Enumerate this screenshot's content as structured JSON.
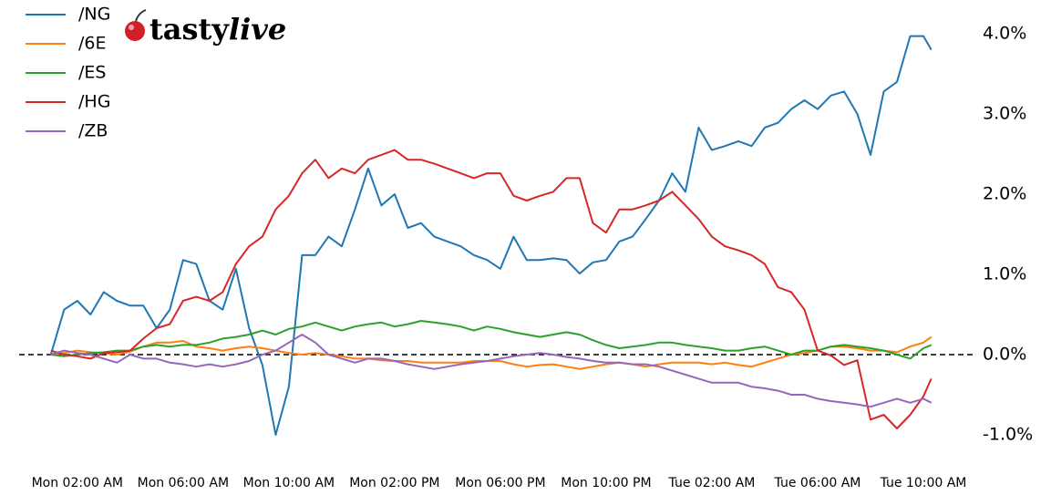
{
  "logo": [
    "tasty",
    "live"
  ],
  "chart_data": {
    "type": "line",
    "x": [
      1,
      1.5,
      2,
      2.5,
      3,
      3.5,
      4,
      4.5,
      5,
      5.5,
      6,
      6.5,
      7,
      7.5,
      8,
      8.5,
      9,
      9.5,
      10,
      10.5,
      11,
      11.5,
      12,
      12.5,
      13,
      13.5,
      14,
      14.5,
      15,
      15.5,
      16,
      16.5,
      17,
      17.5,
      18,
      18.5,
      19,
      19.5,
      20,
      20.5,
      21,
      21.5,
      22,
      22.5,
      23,
      23.5,
      24,
      24.5,
      25,
      25.5,
      26,
      26.5,
      27,
      27.5,
      28,
      28.5,
      29,
      29.5,
      30,
      30.5,
      31,
      31.5,
      32,
      32.5,
      33,
      33.5,
      34,
      34.3
    ],
    "series": [
      {
        "name": "/NG",
        "color": "#1f77b4",
        "values": [
          0,
          0.56,
          0.67,
          0.5,
          0.78,
          0.67,
          0.61,
          0.61,
          0.33,
          0.56,
          1.18,
          1.13,
          0.67,
          0.56,
          1.07,
          0.33,
          -0.13,
          -1.0,
          -0.4,
          1.24,
          1.24,
          1.47,
          1.35,
          1.81,
          2.32,
          1.86,
          2.0,
          1.58,
          1.64,
          1.47,
          1.41,
          1.35,
          1.24,
          1.18,
          1.07,
          1.47,
          1.18,
          1.18,
          1.2,
          1.18,
          1.01,
          1.15,
          1.18,
          1.41,
          1.47,
          1.69,
          1.92,
          2.26,
          2.03,
          2.83,
          2.55,
          2.6,
          2.66,
          2.6,
          2.83,
          2.89,
          3.06,
          3.17,
          3.06,
          3.23,
          3.28,
          3.0,
          2.49,
          3.28,
          3.4,
          3.97,
          3.97,
          3.8
        ]
      },
      {
        "name": "/6E",
        "color": "#ff7f0e",
        "values": [
          0,
          0.02,
          0.05,
          0.03,
          0.02,
          0.0,
          0.04,
          0.1,
          0.15,
          0.15,
          0.17,
          0.1,
          0.08,
          0.05,
          0.08,
          0.1,
          0.08,
          0.05,
          0.02,
          0.0,
          0.02,
          0.0,
          -0.02,
          -0.05,
          -0.05,
          -0.07,
          -0.08,
          -0.08,
          -0.1,
          -0.1,
          -0.1,
          -0.1,
          -0.08,
          -0.08,
          -0.08,
          -0.12,
          -0.15,
          -0.13,
          -0.12,
          -0.15,
          -0.18,
          -0.15,
          -0.12,
          -0.1,
          -0.12,
          -0.15,
          -0.12,
          -0.1,
          -0.1,
          -0.1,
          -0.12,
          -0.1,
          -0.13,
          -0.15,
          -0.1,
          -0.05,
          0,
          0.02,
          0.05,
          0.1,
          0.1,
          0.08,
          0.05,
          0.05,
          0.03,
          0.1,
          0.15,
          0.22
        ]
      },
      {
        "name": "/ES",
        "color": "#2ca02c",
        "values": [
          0,
          -0.02,
          0,
          0.02,
          0.03,
          0.05,
          0.05,
          0.1,
          0.12,
          0.1,
          0.12,
          0.12,
          0.15,
          0.2,
          0.22,
          0.25,
          0.3,
          0.25,
          0.32,
          0.35,
          0.4,
          0.35,
          0.3,
          0.35,
          0.38,
          0.4,
          0.35,
          0.38,
          0.42,
          0.4,
          0.38,
          0.35,
          0.3,
          0.35,
          0.32,
          0.28,
          0.25,
          0.22,
          0.25,
          0.28,
          0.25,
          0.18,
          0.12,
          0.08,
          0.1,
          0.12,
          0.15,
          0.15,
          0.12,
          0.1,
          0.08,
          0.05,
          0.05,
          0.08,
          0.1,
          0.05,
          0.0,
          0.05,
          0.05,
          0.1,
          0.12,
          0.1,
          0.08,
          0.05,
          0.0,
          -0.05,
          0.08,
          0.12
        ]
      },
      {
        "name": "/HG",
        "color": "#d62728",
        "values": [
          0.05,
          0.0,
          -0.02,
          -0.05,
          0.02,
          0.03,
          0.05,
          0.2,
          0.33,
          0.38,
          0.67,
          0.72,
          0.67,
          0.78,
          1.13,
          1.35,
          1.47,
          1.81,
          1.98,
          2.26,
          2.43,
          2.2,
          2.32,
          2.26,
          2.43,
          2.49,
          2.55,
          2.43,
          2.43,
          2.38,
          2.32,
          2.26,
          2.2,
          2.26,
          2.26,
          1.98,
          1.92,
          1.98,
          2.03,
          2.2,
          2.2,
          1.64,
          1.52,
          1.81,
          1.81,
          1.86,
          1.92,
          2.03,
          1.86,
          1.69,
          1.47,
          1.35,
          1.3,
          1.24,
          1.13,
          0.84,
          0.78,
          0.56,
          0.05,
          -0.01,
          -0.13,
          -0.07,
          -0.81,
          -0.75,
          -0.92,
          -0.75,
          -0.52,
          -0.3
        ]
      },
      {
        "name": "/ZB",
        "color": "#9467bd",
        "values": [
          0,
          0.05,
          0.02,
          0.0,
          -0.05,
          -0.1,
          0.0,
          -0.05,
          -0.05,
          -0.1,
          -0.12,
          -0.15,
          -0.12,
          -0.15,
          -0.12,
          -0.08,
          0.0,
          0.05,
          0.15,
          0.25,
          0.15,
          0.0,
          -0.05,
          -0.1,
          -0.05,
          -0.05,
          -0.08,
          -0.12,
          -0.15,
          -0.18,
          -0.15,
          -0.12,
          -0.1,
          -0.08,
          -0.05,
          -0.02,
          0.0,
          0.02,
          0.0,
          -0.03,
          -0.05,
          -0.08,
          -0.1,
          -0.1,
          -0.12,
          -0.12,
          -0.15,
          -0.2,
          -0.25,
          -0.3,
          -0.35,
          -0.35,
          -0.35,
          -0.4,
          -0.42,
          -0.45,
          -0.5,
          -0.5,
          -0.55,
          -0.58,
          -0.6,
          -0.62,
          -0.65,
          -0.6,
          -0.55,
          -0.6,
          -0.55,
          -0.6
        ]
      }
    ],
    "xlim": [
      -0.2,
      36
    ],
    "xticks": [
      {
        "value": 2,
        "label": "Mon 02:00 AM"
      },
      {
        "value": 6,
        "label": "Mon 06:00 AM"
      },
      {
        "value": 10,
        "label": "Mon 10:00 AM"
      },
      {
        "value": 14,
        "label": "Mon 02:00 PM"
      },
      {
        "value": 18,
        "label": "Mon 06:00 PM"
      },
      {
        "value": 22,
        "label": "Mon 10:00 PM"
      },
      {
        "value": 26,
        "label": "Tue 02:00 AM"
      },
      {
        "value": 30,
        "label": "Tue 06:00 AM"
      },
      {
        "value": 34,
        "label": "Tue 10:00 AM"
      }
    ],
    "ylim": [
      -1.3,
      4.35
    ],
    "yticks": [
      {
        "value": -1,
        "label": "-1.0%"
      },
      {
        "value": 0,
        "label": "0.0%"
      },
      {
        "value": 1,
        "label": "1.0%"
      },
      {
        "value": 2,
        "label": "2.0%"
      },
      {
        "value": 3,
        "label": "3.0%"
      },
      {
        "value": 4,
        "label": "4.0%"
      }
    ],
    "y_axis_side": "right",
    "hline": 0,
    "legend": "upper left",
    "grid": false
  }
}
